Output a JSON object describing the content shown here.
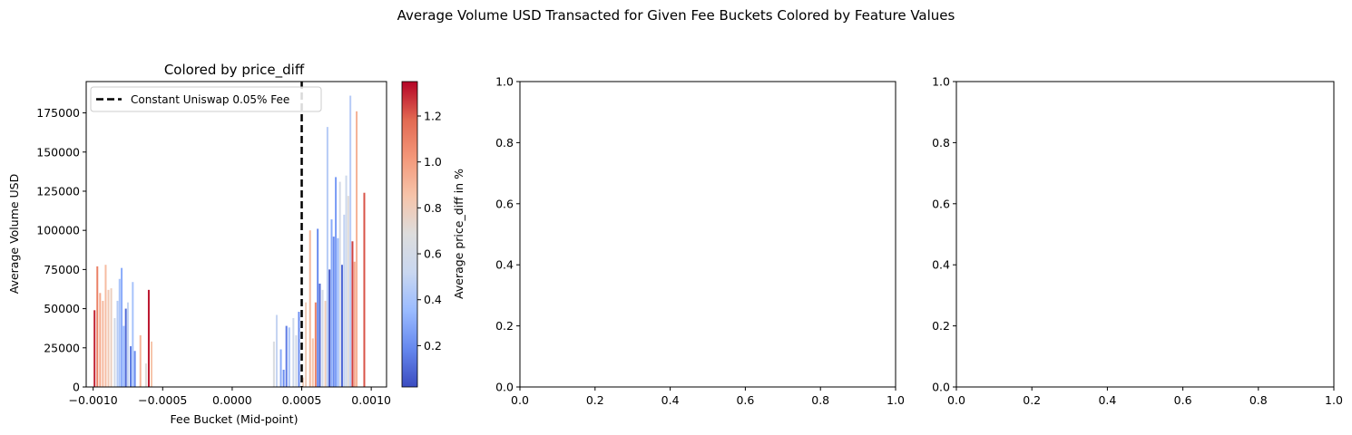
{
  "figure": {
    "suptitle": "Average Volume USD Transacted for Given Fee Buckets Colored by Feature Values"
  },
  "chart_data": [
    {
      "type": "bar",
      "title": "Colored by price_diff",
      "xlabel": "Fee Bucket (Mid-point)",
      "ylabel": "Average Volume USD",
      "xlim": [
        -0.00105,
        0.00111
      ],
      "ylim": [
        0,
        195000
      ],
      "xticks": [
        -0.001,
        -0.0005,
        0.0,
        0.0005,
        0.001
      ],
      "xtick_labels": [
        "−0.0010",
        "−0.0005",
        "0.0000",
        "0.0005",
        "0.0010"
      ],
      "yticks": [
        0,
        25000,
        50000,
        75000,
        100000,
        125000,
        150000,
        175000
      ],
      "ytick_labels": [
        "0",
        "25000",
        "50000",
        "75000",
        "100000",
        "125000",
        "150000",
        "175000"
      ],
      "grid": false,
      "legend": {
        "placement": "upper-left",
        "entries": [
          "Constant Uniswap 0.05% Fee"
        ]
      },
      "reference_line": {
        "x": 0.0005,
        "style": "dashed",
        "color": "#000000",
        "label": "Constant Uniswap 0.05% Fee"
      },
      "colorbar": {
        "label": "Average price_diff in %",
        "colormap": "coolwarm",
        "range": [
          0.02,
          1.35
        ],
        "ticks": [
          0.2,
          0.4,
          0.6,
          0.8,
          1.0,
          1.2
        ],
        "tick_labels": [
          "0.2",
          "0.4",
          "0.6",
          "0.8",
          "1.0",
          "1.2"
        ],
        "stops": [
          "#3b4cc0",
          "#6688ee",
          "#9abbff",
          "#c9d7f0",
          "#dddddd",
          "#f6c4aa",
          "#f4987a",
          "#e26952",
          "#b40426"
        ]
      },
      "bars": [
        {
          "x": -0.00099,
          "value": 49000,
          "price_diff": 1.3
        },
        {
          "x": -0.00097,
          "value": 77000,
          "price_diff": 1.1
        },
        {
          "x": -0.00095,
          "value": 60000,
          "price_diff": 0.95
        },
        {
          "x": -0.00093,
          "value": 55000,
          "price_diff": 0.9
        },
        {
          "x": -0.00091,
          "value": 78000,
          "price_diff": 0.88
        },
        {
          "x": -0.00089,
          "value": 62000,
          "price_diff": 0.82
        },
        {
          "x": -0.00087,
          "value": 63000,
          "price_diff": 0.78
        },
        {
          "x": -0.000845,
          "value": 44000,
          "price_diff": 0.6
        },
        {
          "x": -0.000825,
          "value": 55000,
          "price_diff": 0.45
        },
        {
          "x": -0.00081,
          "value": 69000,
          "price_diff": 0.4
        },
        {
          "x": -0.000795,
          "value": 76000,
          "price_diff": 0.3
        },
        {
          "x": -0.00078,
          "value": 39000,
          "price_diff": 0.35
        },
        {
          "x": -0.000765,
          "value": 50000,
          "price_diff": 0.1
        },
        {
          "x": -0.00075,
          "value": 54000,
          "price_diff": 0.5
        },
        {
          "x": -0.00073,
          "value": 26000,
          "price_diff": 0.15
        },
        {
          "x": -0.000715,
          "value": 67000,
          "price_diff": 0.4
        },
        {
          "x": -0.0007,
          "value": 23000,
          "price_diff": 0.2
        },
        {
          "x": -0.00066,
          "value": 33000,
          "price_diff": 0.9
        },
        {
          "x": -0.00062,
          "value": 15000,
          "price_diff": 0.7
        },
        {
          "x": -0.0006,
          "value": 62000,
          "price_diff": 1.32
        },
        {
          "x": -0.00058,
          "value": 29000,
          "price_diff": 0.85
        },
        {
          "x": 0.0003,
          "value": 29000,
          "price_diff": 0.65
        },
        {
          "x": 0.00032,
          "value": 46000,
          "price_diff": 0.5
        },
        {
          "x": 0.00035,
          "value": 24000,
          "price_diff": 0.3
        },
        {
          "x": 0.00037,
          "value": 11000,
          "price_diff": 0.2
        },
        {
          "x": 0.00039,
          "value": 39000,
          "price_diff": 0.15
        },
        {
          "x": 0.00041,
          "value": 38000,
          "price_diff": 0.4
        },
        {
          "x": 0.00044,
          "value": 44000,
          "price_diff": 0.55
        },
        {
          "x": 0.00046,
          "value": 33000,
          "price_diff": 0.6
        },
        {
          "x": 0.00048,
          "value": 48000,
          "price_diff": 0.2
        },
        {
          "x": 0.00051,
          "value": 6000,
          "price_diff": 0.8
        },
        {
          "x": 0.00053,
          "value": 54000,
          "price_diff": 0.8
        },
        {
          "x": 0.00056,
          "value": 100000,
          "price_diff": 0.9
        },
        {
          "x": 0.00058,
          "value": 31000,
          "price_diff": 0.85
        },
        {
          "x": 0.0006,
          "value": 54000,
          "price_diff": 1.1
        },
        {
          "x": 0.000615,
          "value": 101000,
          "price_diff": 0.2
        },
        {
          "x": 0.00063,
          "value": 66000,
          "price_diff": 0.1
        },
        {
          "x": 0.00065,
          "value": 62000,
          "price_diff": 0.6
        },
        {
          "x": 0.00067,
          "value": 55000,
          "price_diff": 0.8
        },
        {
          "x": 0.000685,
          "value": 166000,
          "price_diff": 0.45
        },
        {
          "x": 0.0007,
          "value": 75000,
          "price_diff": 0.05
        },
        {
          "x": 0.000715,
          "value": 107000,
          "price_diff": 0.3
        },
        {
          "x": 0.00073,
          "value": 96000,
          "price_diff": 0.2
        },
        {
          "x": 0.000745,
          "value": 134000,
          "price_diff": 0.25
        },
        {
          "x": 0.00076,
          "value": 95000,
          "price_diff": 0.35
        },
        {
          "x": 0.000775,
          "value": 131000,
          "price_diff": 0.6
        },
        {
          "x": 0.00079,
          "value": 78000,
          "price_diff": 0.1
        },
        {
          "x": 0.000805,
          "value": 110000,
          "price_diff": 0.5
        },
        {
          "x": 0.00082,
          "value": 135000,
          "price_diff": 0.55
        },
        {
          "x": 0.000835,
          "value": 122000,
          "price_diff": 0.7
        },
        {
          "x": 0.00085,
          "value": 186000,
          "price_diff": 0.45
        },
        {
          "x": 0.000865,
          "value": 93000,
          "price_diff": 1.25
        },
        {
          "x": 0.00088,
          "value": 80000,
          "price_diff": 0.95
        },
        {
          "x": 0.000895,
          "value": 176000,
          "price_diff": 0.92
        },
        {
          "x": 0.00095,
          "value": 124000,
          "price_diff": 1.22
        }
      ]
    },
    {
      "type": "blank",
      "xlim": [
        0,
        1
      ],
      "ylim": [
        0,
        1
      ],
      "xtick_labels": [
        "0.0",
        "0.2",
        "0.4",
        "0.6",
        "0.8",
        "1.0"
      ],
      "ytick_labels": [
        "0.0",
        "0.2",
        "0.4",
        "0.6",
        "0.8",
        "1.0"
      ]
    },
    {
      "type": "blank",
      "xlim": [
        0,
        1
      ],
      "ylim": [
        0,
        1
      ],
      "xtick_labels": [
        "0.0",
        "0.2",
        "0.4",
        "0.6",
        "0.8",
        "1.0"
      ],
      "ytick_labels": [
        "0.0",
        "0.2",
        "0.4",
        "0.6",
        "0.8",
        "1.0"
      ]
    }
  ]
}
